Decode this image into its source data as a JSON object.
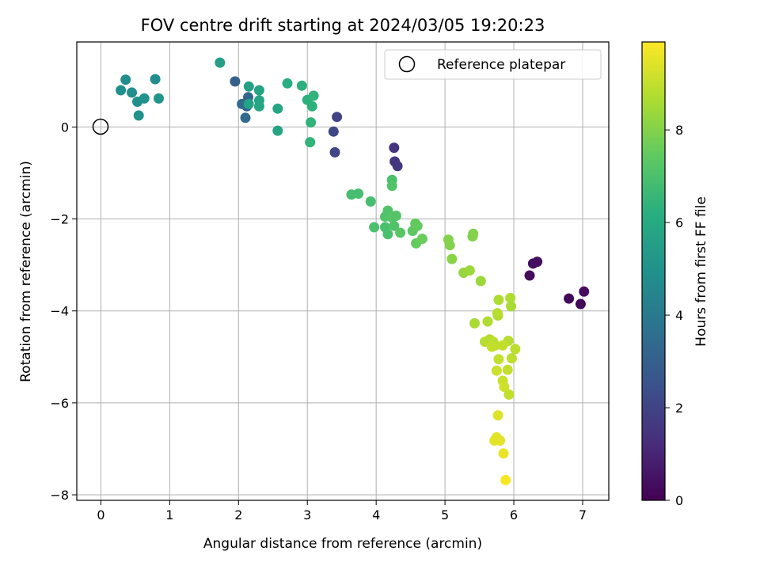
{
  "chart_data": {
    "type": "scatter",
    "title": "FOV centre drift starting at 2024/03/05 19:20:23",
    "xlabel": "Angular distance from reference (arcmin)",
    "ylabel": "Rotation from reference (arcmin)",
    "xlim": [
      -0.35,
      7.38
    ],
    "ylim": [
      -8.12,
      1.85
    ],
    "xticks": [
      0,
      1,
      2,
      3,
      4,
      5,
      6,
      7
    ],
    "yticks": [
      0,
      -2,
      -4,
      -6,
      -8
    ],
    "xtick_labels": [
      "0",
      "1",
      "2",
      "3",
      "4",
      "5",
      "6",
      "7"
    ],
    "ytick_labels": [
      "0",
      "−2",
      "−4",
      "−6",
      "−8"
    ],
    "grid": true,
    "legend": {
      "placement": "top-right",
      "entries": [
        "Reference platepar"
      ]
    },
    "reference_point": {
      "x": 0,
      "y": 0
    },
    "colorbar": {
      "label": "Hours from first FF file",
      "range": [
        0,
        9.9
      ],
      "ticks": [
        0,
        2,
        4,
        6,
        8
      ],
      "tick_labels": [
        "0",
        "2",
        "4",
        "6",
        "8"
      ],
      "colormap": "viridis"
    },
    "points": [
      [
        6.8,
        -3.73,
        0.2
      ],
      [
        6.97,
        -3.85,
        0.2
      ],
      [
        7.02,
        -3.58,
        0.3
      ],
      [
        6.23,
        -3.23,
        0.3
      ],
      [
        6.28,
        -2.97,
        0.4
      ],
      [
        6.34,
        -2.93,
        0.4
      ],
      [
        4.26,
        -0.45,
        1.5
      ],
      [
        4.27,
        -0.75,
        1.5
      ],
      [
        4.31,
        -0.85,
        1.6
      ],
      [
        3.43,
        0.22,
        2.0
      ],
      [
        3.38,
        -0.1,
        2.1
      ],
      [
        3.4,
        -0.55,
        2.1
      ],
      [
        1.95,
        0.99,
        3.0
      ],
      [
        2.12,
        0.45,
        3.2
      ],
      [
        2.14,
        0.65,
        3.3
      ],
      [
        2.1,
        0.2,
        3.4
      ],
      [
        2.05,
        0.5,
        3.5
      ],
      [
        0.79,
        1.04,
        4.8
      ],
      [
        0.36,
        1.03,
        4.8
      ],
      [
        0.29,
        0.8,
        4.9
      ],
      [
        0.45,
        0.75,
        4.9
      ],
      [
        0.53,
        0.55,
        4.9
      ],
      [
        0.63,
        0.62,
        5.0
      ],
      [
        0.55,
        0.25,
        5.0
      ],
      [
        0.84,
        0.62,
        5.1
      ],
      [
        1.73,
        1.4,
        5.5
      ],
      [
        2.15,
        0.88,
        5.6
      ],
      [
        2.3,
        0.8,
        5.7
      ],
      [
        2.3,
        0.58,
        5.7
      ],
      [
        2.3,
        0.45,
        5.8
      ],
      [
        2.15,
        0.5,
        5.7
      ],
      [
        2.57,
        0.4,
        5.8
      ],
      [
        2.57,
        -0.08,
        5.8
      ],
      [
        2.71,
        0.95,
        6.2
      ],
      [
        2.92,
        0.9,
        6.3
      ],
      [
        3.0,
        0.59,
        6.3
      ],
      [
        3.09,
        0.68,
        6.4
      ],
      [
        3.07,
        0.45,
        6.3
      ],
      [
        3.05,
        0.1,
        6.4
      ],
      [
        3.04,
        -0.33,
        6.4
      ],
      [
        3.64,
        -1.47,
        6.9
      ],
      [
        3.74,
        -1.45,
        6.9
      ],
      [
        3.92,
        -1.62,
        6.9
      ],
      [
        3.97,
        -2.18,
        7.0
      ],
      [
        4.13,
        -2.18,
        7.0
      ],
      [
        4.13,
        -1.95,
        7.1
      ],
      [
        4.17,
        -1.82,
        7.1
      ],
      [
        4.23,
        -1.97,
        7.2
      ],
      [
        4.26,
        -2.15,
        7.1
      ],
      [
        4.29,
        -1.93,
        7.2
      ],
      [
        4.17,
        -2.33,
        7.0
      ],
      [
        4.23,
        -1.15,
        7.0
      ],
      [
        4.23,
        -1.28,
        7.1
      ],
      [
        4.35,
        -2.3,
        7.3
      ],
      [
        4.53,
        -2.26,
        7.4
      ],
      [
        4.57,
        -2.1,
        7.5
      ],
      [
        4.6,
        -2.15,
        7.5
      ],
      [
        4.58,
        -2.53,
        7.5
      ],
      [
        4.67,
        -2.43,
        7.6
      ],
      [
        5.05,
        -2.45,
        8.0
      ],
      [
        5.07,
        -2.57,
        8.0
      ],
      [
        5.1,
        -2.87,
        8.1
      ],
      [
        5.41,
        -2.32,
        8.0
      ],
      [
        5.4,
        -2.38,
        8.0
      ],
      [
        5.27,
        -3.17,
        8.3
      ],
      [
        5.36,
        -3.12,
        8.4
      ],
      [
        5.52,
        -3.35,
        8.4
      ],
      [
        5.78,
        -3.76,
        8.7
      ],
      [
        5.95,
        -3.72,
        8.7
      ],
      [
        5.96,
        -3.9,
        8.6
      ],
      [
        5.43,
        -4.27,
        8.6
      ],
      [
        5.62,
        -4.23,
        8.7
      ],
      [
        5.77,
        -4.1,
        8.7
      ],
      [
        5.76,
        -4.05,
        8.8
      ],
      [
        5.58,
        -4.67,
        8.8
      ],
      [
        5.65,
        -4.62,
        8.8
      ],
      [
        5.7,
        -4.67,
        8.9
      ],
      [
        5.73,
        -4.75,
        8.9
      ],
      [
        5.68,
        -4.78,
        9.0
      ],
      [
        5.92,
        -4.65,
        8.8
      ],
      [
        6.02,
        -4.83,
        8.9
      ],
      [
        5.84,
        -4.75,
        9.0
      ],
      [
        5.78,
        -5.05,
        9.0
      ],
      [
        5.97,
        -5.03,
        8.9
      ],
      [
        5.75,
        -5.3,
        9.1
      ],
      [
        5.91,
        -5.28,
        9.0
      ],
      [
        5.84,
        -5.52,
        9.1
      ],
      [
        5.86,
        -5.65,
        9.2
      ],
      [
        5.93,
        -5.82,
        9.0
      ],
      [
        5.77,
        -6.27,
        9.4
      ],
      [
        5.75,
        -6.75,
        9.5
      ],
      [
        5.72,
        -6.82,
        9.5
      ],
      [
        5.8,
        -6.82,
        9.5
      ],
      [
        5.85,
        -7.1,
        9.6
      ],
      [
        5.88,
        -7.68,
        9.8
      ]
    ]
  }
}
